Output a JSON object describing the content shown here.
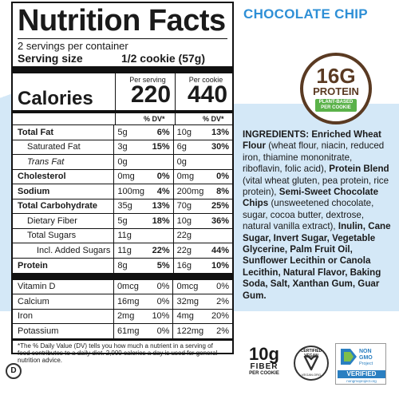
{
  "title": "Nutrition Facts",
  "servings_per_container": "2 servings per container",
  "serving_size_label": "Serving size",
  "serving_size_value": "1/2 cookie (57g)",
  "col_per_serving": "Per serving",
  "col_per_cookie": "Per cookie",
  "calories_label": "Calories",
  "calories_per_serving": "220",
  "calories_per_cookie": "440",
  "dv_header": "% DV*",
  "rows": [
    {
      "name": "Total Fat",
      "a1": "5g",
      "d1": "6%",
      "a2": "10g",
      "d2": "13%"
    },
    {
      "name": "Saturated Fat",
      "a1": "3g",
      "d1": "15%",
      "a2": "6g",
      "d2": "30%"
    },
    {
      "name": "Trans Fat",
      "a1": "0g",
      "d1": "",
      "a2": "0g",
      "d2": ""
    },
    {
      "name": "Cholesterol",
      "a1": "0mg",
      "d1": "0%",
      "a2": "0mg",
      "d2": "0%"
    },
    {
      "name": "Sodium",
      "a1": "100mg",
      "d1": "4%",
      "a2": "200mg",
      "d2": "8%"
    },
    {
      "name": "Total Carbohydrate",
      "a1": "35g",
      "d1": "13%",
      "a2": "70g",
      "d2": "25%"
    },
    {
      "name": "Dietary Fiber",
      "a1": "5g",
      "d1": "18%",
      "a2": "10g",
      "d2": "36%"
    },
    {
      "name": "Total Sugars",
      "a1": "11g",
      "d1": "",
      "a2": "22g",
      "d2": ""
    },
    {
      "name": "Incl. Added Sugars",
      "a1": "11g",
      "d1": "22%",
      "a2": "22g",
      "d2": "44%"
    },
    {
      "name": "Protein",
      "a1": "8g",
      "d1": "5%",
      "a2": "16g",
      "d2": "10%"
    }
  ],
  "micro": [
    {
      "name": "Vitamin D",
      "a1": "0mcg",
      "d1": "0%",
      "a2": "0mcg",
      "d2": "0%"
    },
    {
      "name": "Calcium",
      "a1": "16mg",
      "d1": "0%",
      "a2": "32mg",
      "d2": "2%"
    },
    {
      "name": "Iron",
      "a1": "2mg",
      "d1": "10%",
      "a2": "4mg",
      "d2": "20%"
    },
    {
      "name": "Potassium",
      "a1": "61mg",
      "d1": "0%",
      "a2": "122mg",
      "d2": "2%"
    }
  ],
  "footnote": "*The % Daily Value (DV) tells you how much a nutrient in a serving of food contributes to a daily diet. 2,000 calories a day is used for general nutrition advice.",
  "flavor": "CHOCOLATE CHIP",
  "badge": {
    "amount": "16G",
    "label": "PROTEIN",
    "sub1": "PLANT-BASED",
    "sub2": "PER COOKIE"
  },
  "ingredients": {
    "p1": "INGREDIENTS: Enriched Wheat Flour",
    "p2": " (wheat flour, niacin, reduced iron, thiamine mononitrate, riboflavin, folic acid), ",
    "p3": "Protein Blend",
    "p4": " (vital wheat gluten, pea protein, rice protein), ",
    "p5": "Semi-Sweet Chocolate Chips",
    "p6": " (unsweetened chocolate, sugar, cocoa butter, dextrose, natural vanilla extract), ",
    "p7": "Inulin, Cane Sugar, Invert Sugar, Vegetable Glycerine, Palm Fruit Oil, Sunflower Lecithin or Canola Lecithin, Natural Flavor, Baking Soda, Salt, Xanthan Gum, Guar Gum."
  },
  "fiber": {
    "amount": "10g",
    "label": "FIBER",
    "sub": "PER COOKIE"
  },
  "vegan": {
    "top": "CERTIFIED VEGAN",
    "bottom": "VEGAN.ORG"
  },
  "nongmo": {
    "line1": "NON",
    "line2": "GMO",
    "line3": "Project",
    "verified": "VERIFIED",
    "url": "nongmoproject.org"
  },
  "kosher": "D",
  "colors": {
    "flavor": "#2e8fd6",
    "badge_brown": "#5a3a22",
    "badge_green": "#5bb24a",
    "background_blue": "#d4e8f7"
  }
}
